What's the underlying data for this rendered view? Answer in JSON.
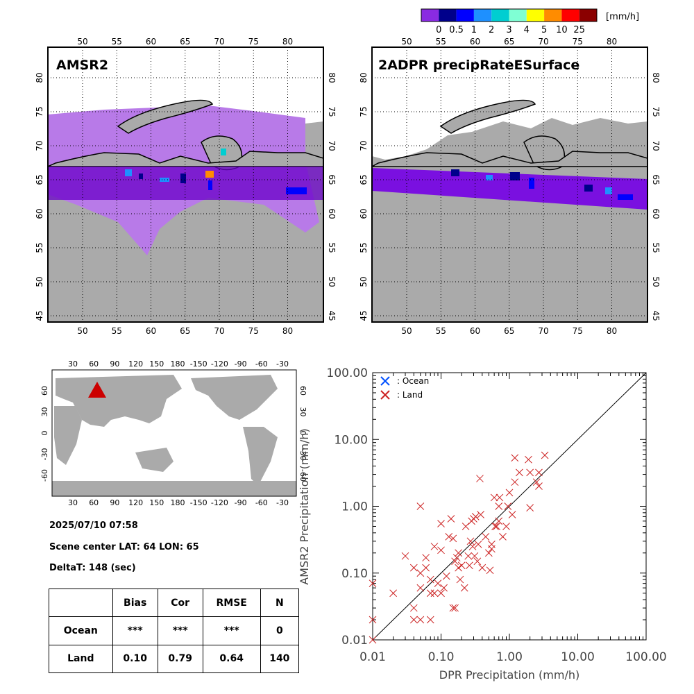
{
  "colorbar": {
    "unit": "[mm/h]",
    "colors": [
      "#8a2be2",
      "#00008b",
      "#0000ff",
      "#1e90ff",
      "#00ced1",
      "#7fffd4",
      "#ffff00",
      "#ff8c00",
      "#ff0000",
      "#8b0000"
    ],
    "tick_labels": [
      "0",
      "0.5",
      "1",
      "2",
      "3",
      "4",
      "5",
      "10",
      "25"
    ]
  },
  "maps": [
    {
      "title": "AMSR2"
    },
    {
      "title": "2ADPR precipRateESurface"
    }
  ],
  "map_axes": {
    "lon_ticks": [
      "50",
      "55",
      "60",
      "65",
      "70",
      "75",
      "80"
    ],
    "lat_ticks": [
      "80",
      "75",
      "70",
      "65",
      "60",
      "55",
      "50",
      "45"
    ]
  },
  "globe": {
    "lon_ticks": [
      "30",
      "60",
      "90",
      "120",
      "150",
      "180",
      "-150",
      "-120",
      "-90",
      "-60",
      "-30"
    ],
    "lat_ticks": [
      "60",
      "30",
      "0",
      "-30",
      "-60"
    ],
    "marker_color": "#cc0000"
  },
  "info": {
    "datetime": "2025/07/10 07:58",
    "scene_center": "Scene center LAT: 64   LON:  65",
    "delta_t": "DeltaT:  148 (sec)"
  },
  "stats_table": {
    "headers": [
      "Bias",
      "Cor",
      "RMSE",
      "N"
    ],
    "rows": [
      {
        "label": "Ocean",
        "bias": "***",
        "cor": "***",
        "rmse": "***",
        "n": "0"
      },
      {
        "label": "Land",
        "bias": "0.10",
        "cor": "0.79",
        "rmse": "0.64",
        "n": "140"
      }
    ]
  },
  "chart_data": {
    "type": "scatter",
    "xlabel": "DPR Precipitation (mm/h)",
    "ylabel": "AMSR2 Precipitation (mm/h)",
    "xscale": "log",
    "yscale": "log",
    "xlim": [
      0.01,
      100
    ],
    "ylim": [
      0.01,
      100
    ],
    "tick_labels": [
      "0.01",
      "0.10",
      "1.00",
      "10.00",
      "100.00"
    ],
    "legend": [
      {
        "label": ": Ocean",
        "color": "#0050ff"
      },
      {
        "label": ": Land",
        "color": "#cc2222"
      }
    ],
    "legend_position": "top-left",
    "one_to_one_line": true,
    "series": [
      {
        "name": ": Ocean",
        "color": "#0050ff",
        "points": []
      },
      {
        "name": ": Land",
        "color": "#cc2222",
        "points": [
          [
            0.01,
            0.07
          ],
          [
            0.01,
            0.02
          ],
          [
            0.01,
            0.01
          ],
          [
            0.02,
            0.05
          ],
          [
            0.03,
            0.18
          ],
          [
            0.04,
            0.12
          ],
          [
            0.04,
            0.03
          ],
          [
            0.04,
            0.02
          ],
          [
            0.05,
            0.1
          ],
          [
            0.05,
            0.06
          ],
          [
            0.05,
            0.02
          ],
          [
            0.05,
            1.0
          ],
          [
            0.06,
            0.17
          ],
          [
            0.06,
            0.12
          ],
          [
            0.07,
            0.08
          ],
          [
            0.07,
            0.05
          ],
          [
            0.07,
            0.02
          ],
          [
            0.08,
            0.25
          ],
          [
            0.08,
            0.05
          ],
          [
            0.09,
            0.07
          ],
          [
            0.1,
            0.05
          ],
          [
            0.1,
            0.55
          ],
          [
            0.1,
            0.22
          ],
          [
            0.11,
            0.06
          ],
          [
            0.12,
            0.09
          ],
          [
            0.13,
            0.35
          ],
          [
            0.14,
            0.65
          ],
          [
            0.15,
            0.33
          ],
          [
            0.15,
            0.03
          ],
          [
            0.16,
            0.15
          ],
          [
            0.16,
            0.03
          ],
          [
            0.17,
            0.17
          ],
          [
            0.18,
            0.2
          ],
          [
            0.18,
            0.12
          ],
          [
            0.19,
            0.08
          ],
          [
            0.2,
            0.13
          ],
          [
            0.22,
            0.06
          ],
          [
            0.23,
            0.5
          ],
          [
            0.25,
            0.18
          ],
          [
            0.26,
            0.13
          ],
          [
            0.27,
            0.3
          ],
          [
            0.28,
            0.6
          ],
          [
            0.29,
            0.25
          ],
          [
            0.3,
            0.65
          ],
          [
            0.31,
            0.18
          ],
          [
            0.32,
            0.7
          ],
          [
            0.34,
            0.15
          ],
          [
            0.35,
            0.27
          ],
          [
            0.37,
            2.6
          ],
          [
            0.38,
            0.75
          ],
          [
            0.4,
            0.12
          ],
          [
            0.45,
            0.35
          ],
          [
            0.5,
            0.2
          ],
          [
            0.52,
            0.11
          ],
          [
            0.55,
            0.27
          ],
          [
            0.55,
            0.23
          ],
          [
            0.6,
            1.35
          ],
          [
            0.62,
            0.5
          ],
          [
            0.65,
            0.5
          ],
          [
            0.7,
            0.6
          ],
          [
            0.7,
            1.0
          ],
          [
            0.72,
            1.35
          ],
          [
            0.8,
            0.35
          ],
          [
            0.9,
            0.5
          ],
          [
            0.95,
            1.0
          ],
          [
            1.0,
            1.6
          ],
          [
            1.1,
            0.75
          ],
          [
            1.2,
            5.3
          ],
          [
            1.2,
            2.3
          ],
          [
            1.4,
            3.2
          ],
          [
            1.9,
            5.0
          ],
          [
            2.0,
            3.2
          ],
          [
            2.0,
            0.95
          ],
          [
            2.5,
            2.3
          ],
          [
            2.7,
            2.0
          ],
          [
            2.7,
            3.2
          ],
          [
            3.3,
            5.8
          ]
        ]
      }
    ]
  }
}
